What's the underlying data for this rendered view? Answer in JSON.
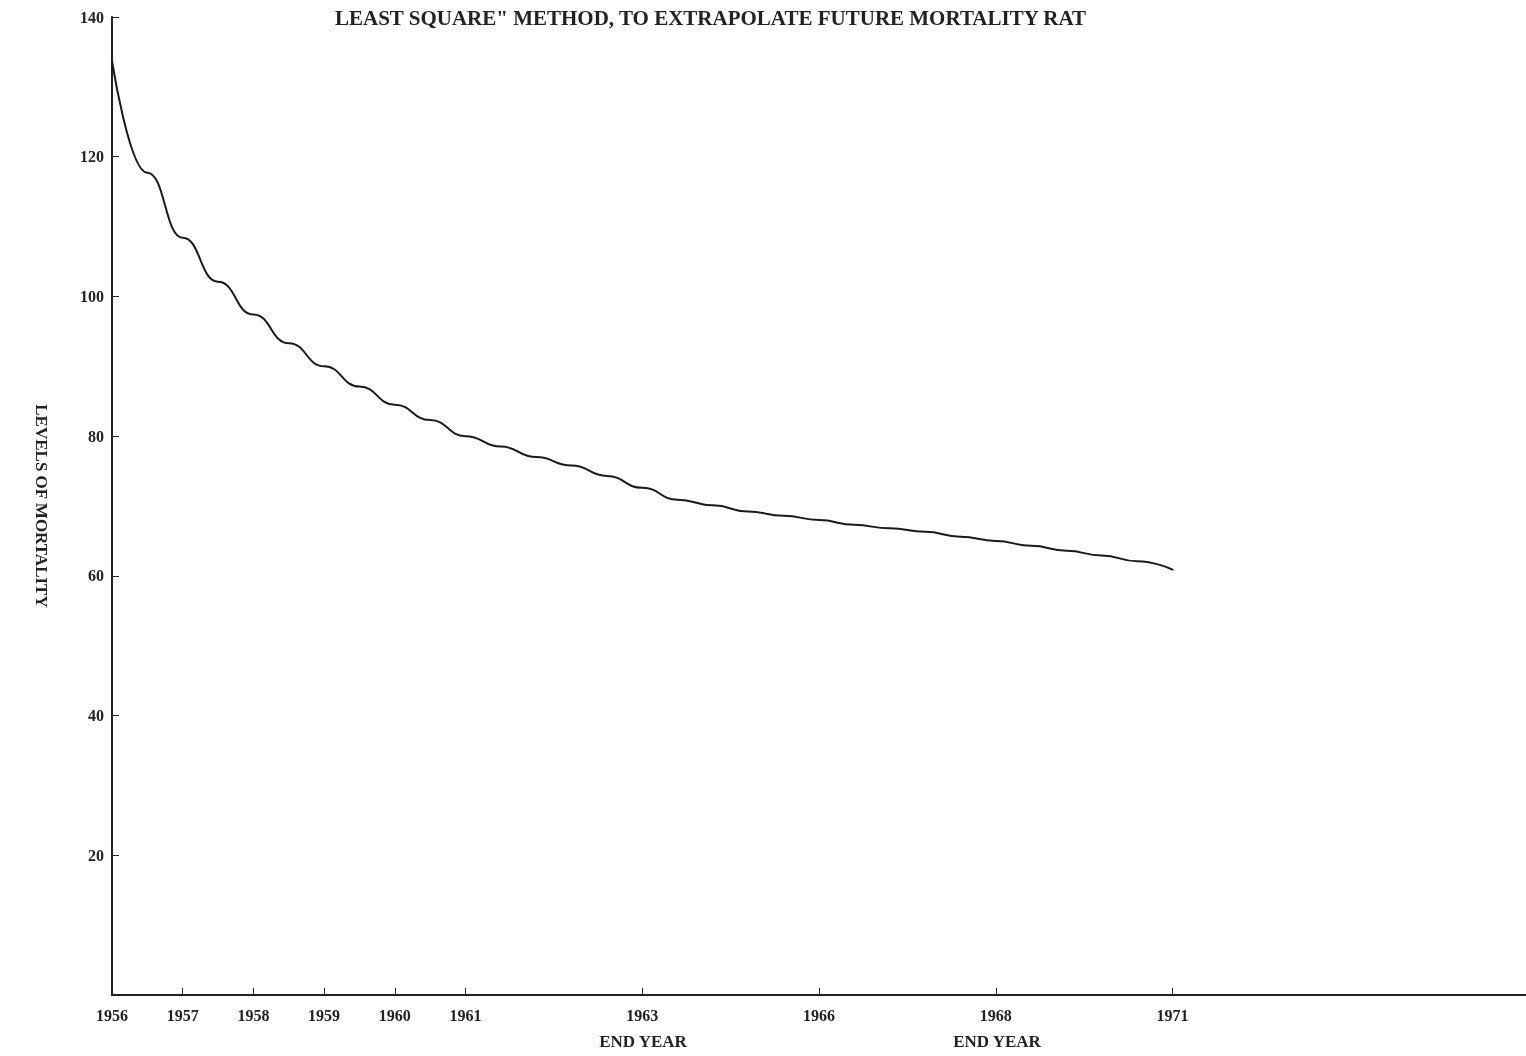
{
  "chart_data": {
    "type": "line",
    "title": "LEAST SQUARE\" METHOD, TO EXTRAPOLATE FUTURE MORTALITY RAT",
    "ylabel": "LEVELS OF MORTALITY",
    "categories": [
      "1956",
      null,
      "1957",
      null,
      "1958",
      null,
      "1959",
      null,
      "1960",
      null,
      "1961",
      null,
      null,
      null,
      null,
      "1963",
      null,
      null,
      null,
      null,
      "1966",
      null,
      null,
      null,
      null,
      "1968",
      null,
      null,
      null,
      null,
      "1971",
      null,
      null,
      null,
      null,
      null,
      null,
      null,
      null,
      null,
      null
    ],
    "series": [
      {
        "color": "#1a1a1a",
        "values": [
          133.7,
          117.7,
          108.4,
          102.1,
          97.4,
          93.3,
          90.0,
          87.1,
          84.5,
          82.3,
          80.0,
          78.5,
          77.0,
          75.8,
          74.3,
          72.6,
          70.9,
          70.1,
          69.2,
          68.6,
          68.0,
          67.3,
          66.8,
          66.3,
          65.6,
          65.0,
          64.3,
          63.6,
          62.9,
          62.1,
          60.9,
          null,
          null,
          null,
          null,
          null,
          null,
          null,
          null,
          null,
          null
        ]
      }
    ],
    "ylim": [
      0,
      140
    ],
    "yticks": [
      20,
      40,
      60,
      80,
      100,
      120,
      140
    ],
    "annotations": [
      "END YEAR",
      "END YEAR"
    ],
    "marker": "none",
    "line_style": "solid",
    "grid": false
  }
}
